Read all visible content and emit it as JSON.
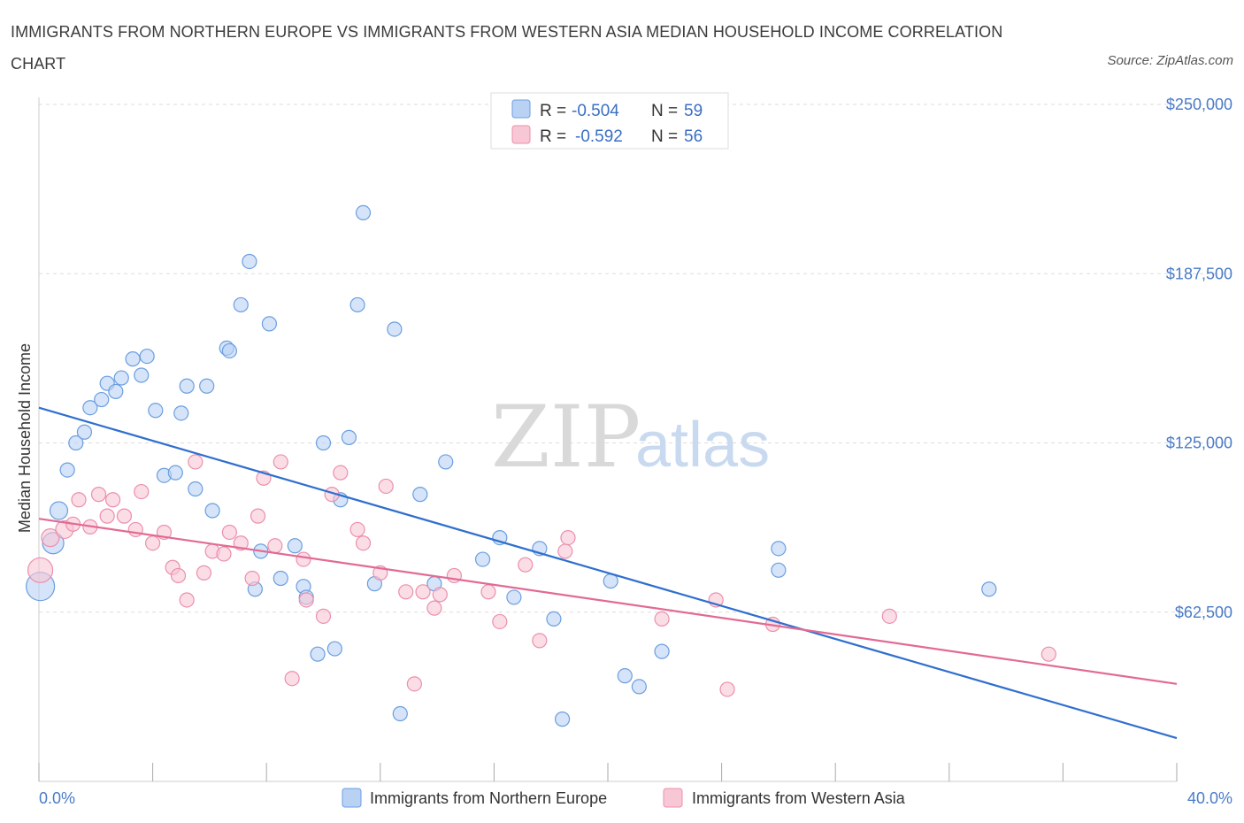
{
  "title": "IMMIGRANTS FROM NORTHERN EUROPE VS IMMIGRANTS FROM WESTERN ASIA MEDIAN HOUSEHOLD INCOME CORRELATION CHART",
  "source": "Source: ZipAtlas.com",
  "watermark": {
    "zip": "ZIP",
    "atlas": "atlas"
  },
  "colors": {
    "blue_fill": "#b9d2f4",
    "blue_stroke": "#6b9ee0",
    "blue_line": "#2f6fce",
    "pink_fill": "#f8c7d6",
    "pink_stroke": "#ec8fac",
    "pink_line": "#e26a94",
    "grid": "#dddddd",
    "axis_text": "#4a7cc7"
  },
  "legend": {
    "r_label": "R =",
    "n_label": "N =",
    "rows": [
      {
        "r": "-0.504",
        "n": "59"
      },
      {
        "r": "-0.592",
        "n": "56"
      }
    ]
  },
  "chart_data": {
    "type": "scatter",
    "xlabel": "",
    "ylabel": "Median Household Income",
    "xlim": [
      0,
      40
    ],
    "ylim": [
      0,
      250000
    ],
    "x_tick_labels": [
      "0.0%",
      "40.0%"
    ],
    "y_ticks": [
      62500,
      125000,
      187500,
      250000
    ],
    "y_tick_labels": [
      "$62,500",
      "$125,000",
      "$187,500",
      "$250,000"
    ],
    "grid": "horizontal dashed",
    "series": [
      {
        "name": "Immigrants from Northern Europe",
        "trend": {
          "x": [
            0,
            40
          ],
          "y": [
            138000,
            16000
          ]
        },
        "points": [
          [
            0.05,
            72000,
            16
          ],
          [
            0.5,
            88000,
            12
          ],
          [
            0.7,
            100000,
            10
          ],
          [
            1.0,
            115000,
            8
          ],
          [
            1.3,
            125000,
            8
          ],
          [
            1.6,
            129000,
            8
          ],
          [
            1.8,
            138000,
            8
          ],
          [
            2.2,
            141000,
            8
          ],
          [
            2.4,
            147000,
            8
          ],
          [
            2.7,
            144000,
            8
          ],
          [
            2.9,
            149000,
            8
          ],
          [
            3.3,
            156000,
            8
          ],
          [
            3.6,
            150000,
            8
          ],
          [
            3.8,
            157000,
            8
          ],
          [
            4.1,
            137000,
            8
          ],
          [
            4.4,
            113000,
            8
          ],
          [
            4.8,
            114000,
            8
          ],
          [
            5.0,
            136000,
            8
          ],
          [
            5.2,
            146000,
            8
          ],
          [
            5.5,
            108000,
            8
          ],
          [
            5.9,
            146000,
            8
          ],
          [
            6.1,
            100000,
            8
          ],
          [
            6.6,
            160000,
            8
          ],
          [
            6.7,
            159000,
            8
          ],
          [
            7.1,
            176000,
            8
          ],
          [
            7.4,
            192000,
            8
          ],
          [
            7.6,
            71000,
            8
          ],
          [
            7.8,
            85000,
            8
          ],
          [
            8.1,
            169000,
            8
          ],
          [
            8.5,
            75000,
            8
          ],
          [
            9.0,
            87000,
            8
          ],
          [
            9.3,
            72000,
            8
          ],
          [
            9.4,
            68000,
            8
          ],
          [
            9.8,
            47000,
            8
          ],
          [
            10.0,
            125000,
            8
          ],
          [
            10.4,
            49000,
            8
          ],
          [
            10.6,
            104000,
            8
          ],
          [
            10.9,
            127000,
            8
          ],
          [
            11.2,
            176000,
            8
          ],
          [
            11.4,
            210000,
            8
          ],
          [
            11.8,
            73000,
            8
          ],
          [
            12.5,
            167000,
            8
          ],
          [
            12.7,
            25000,
            8
          ],
          [
            13.4,
            106000,
            8
          ],
          [
            13.9,
            73000,
            8
          ],
          [
            14.3,
            118000,
            8
          ],
          [
            15.6,
            82000,
            8
          ],
          [
            16.2,
            90000,
            8
          ],
          [
            16.7,
            68000,
            8
          ],
          [
            17.6,
            86000,
            8
          ],
          [
            18.1,
            60000,
            8
          ],
          [
            18.4,
            23000,
            8
          ],
          [
            20.1,
            74000,
            8
          ],
          [
            20.6,
            39000,
            8
          ],
          [
            21.1,
            35000,
            8
          ],
          [
            21.9,
            48000,
            8
          ],
          [
            26.0,
            86000,
            8
          ],
          [
            26.0,
            78000,
            8
          ],
          [
            33.4,
            71000,
            8
          ]
        ]
      },
      {
        "name": "Immigrants from Western Asia",
        "trend": {
          "x": [
            0,
            40
          ],
          "y": [
            97000,
            36000
          ]
        },
        "points": [
          [
            0.05,
            78000,
            14
          ],
          [
            0.4,
            90000,
            10
          ],
          [
            0.9,
            93000,
            10
          ],
          [
            1.2,
            95000,
            8
          ],
          [
            1.4,
            104000,
            8
          ],
          [
            1.8,
            94000,
            8
          ],
          [
            2.1,
            106000,
            8
          ],
          [
            2.4,
            98000,
            8
          ],
          [
            2.6,
            104000,
            8
          ],
          [
            3.0,
            98000,
            8
          ],
          [
            3.4,
            93000,
            8
          ],
          [
            3.6,
            107000,
            8
          ],
          [
            4.0,
            88000,
            8
          ],
          [
            4.4,
            92000,
            8
          ],
          [
            4.7,
            79000,
            8
          ],
          [
            4.9,
            76000,
            8
          ],
          [
            5.2,
            67000,
            8
          ],
          [
            5.5,
            118000,
            8
          ],
          [
            5.8,
            77000,
            8
          ],
          [
            6.1,
            85000,
            8
          ],
          [
            6.5,
            84000,
            8
          ],
          [
            6.7,
            92000,
            8
          ],
          [
            7.1,
            88000,
            8
          ],
          [
            7.5,
            75000,
            8
          ],
          [
            7.7,
            98000,
            8
          ],
          [
            7.9,
            112000,
            8
          ],
          [
            8.3,
            87000,
            8
          ],
          [
            8.5,
            118000,
            8
          ],
          [
            8.9,
            38000,
            8
          ],
          [
            9.3,
            82000,
            8
          ],
          [
            9.4,
            67000,
            8
          ],
          [
            10.0,
            61000,
            8
          ],
          [
            10.3,
            106000,
            8
          ],
          [
            10.6,
            114000,
            8
          ],
          [
            11.2,
            93000,
            8
          ],
          [
            11.4,
            88000,
            8
          ],
          [
            12.0,
            77000,
            8
          ],
          [
            12.2,
            109000,
            8
          ],
          [
            12.9,
            70000,
            8
          ],
          [
            13.2,
            36000,
            8
          ],
          [
            13.5,
            70000,
            8
          ],
          [
            13.9,
            64000,
            8
          ],
          [
            14.1,
            69000,
            8
          ],
          [
            14.6,
            76000,
            8
          ],
          [
            15.8,
            70000,
            8
          ],
          [
            16.2,
            59000,
            8
          ],
          [
            17.1,
            80000,
            8
          ],
          [
            17.6,
            52000,
            8
          ],
          [
            18.5,
            85000,
            8
          ],
          [
            18.6,
            90000,
            8
          ],
          [
            21.9,
            60000,
            8
          ],
          [
            23.8,
            67000,
            8
          ],
          [
            24.2,
            34000,
            8
          ],
          [
            25.8,
            58000,
            8
          ],
          [
            29.9,
            61000,
            8
          ],
          [
            35.5,
            47000,
            8
          ]
        ]
      }
    ],
    "legend_position": "top-center"
  }
}
